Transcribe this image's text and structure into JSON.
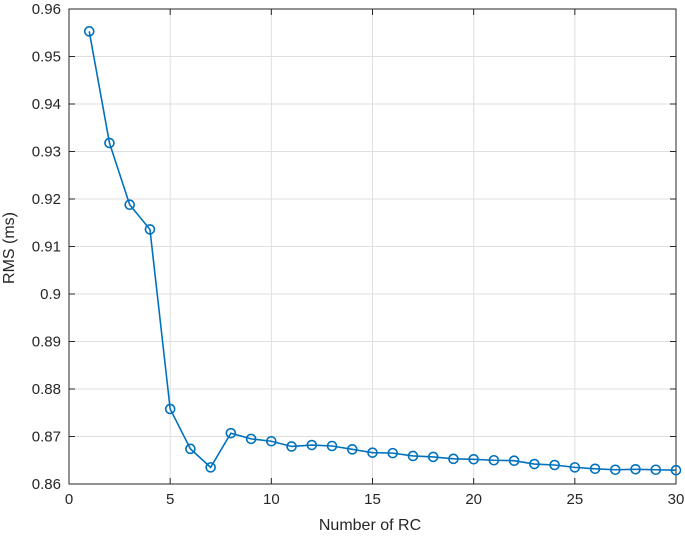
{
  "chart_data": {
    "type": "line",
    "title": "",
    "xlabel": "Number of RC",
    "ylabel": "RMS (ms)",
    "xlim": [
      0,
      30
    ],
    "ylim": [
      0.86,
      0.96
    ],
    "xticks": [
      "0",
      "5",
      "10",
      "15",
      "20",
      "25",
      "30"
    ],
    "yticks": [
      "0.86",
      "0.87",
      "0.88",
      "0.89",
      "0.9",
      "0.91",
      "0.92",
      "0.93",
      "0.94",
      "0.95",
      "0.96"
    ],
    "grid": true,
    "marker": "circle",
    "line_color": "#0072BD",
    "series": [
      {
        "x": [
          1,
          2,
          3,
          4,
          5,
          6,
          7,
          8,
          9,
          10,
          11,
          12,
          13,
          14,
          15,
          16,
          17,
          18,
          19,
          20,
          21,
          22,
          23,
          24,
          25,
          26,
          27,
          28,
          29,
          30
        ],
        "values": [
          0.9553,
          0.9318,
          0.9188,
          0.9136,
          0.8758,
          0.8674,
          0.8635,
          0.8707,
          0.8695,
          0.869,
          0.8679,
          0.8682,
          0.868,
          0.8673,
          0.8666,
          0.8665,
          0.8659,
          0.8657,
          0.8653,
          0.8652,
          0.865,
          0.8649,
          0.8642,
          0.864,
          0.8635,
          0.8632,
          0.863,
          0.8631,
          0.863,
          0.8629
        ]
      }
    ]
  }
}
